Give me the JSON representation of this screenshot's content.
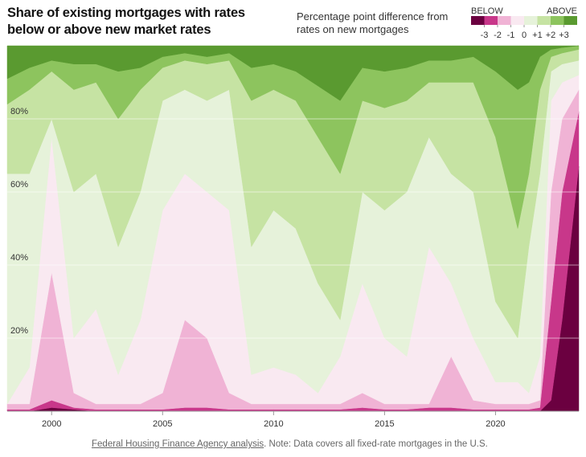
{
  "chart_data": {
    "type": "stacked_area",
    "title": "Share of existing mortgages with rates below or above new market rates",
    "subtitle": "Percentage point difference from rates on new mortgages",
    "source": "Federal Housing Finance Agency analysis",
    "note": ". Note: Data covers all fixed-rate mortgages in the U.S.",
    "legend": {
      "below_label": "BELOW",
      "above_label": "ABOVE",
      "ticks": [
        -3,
        -2,
        -1,
        0,
        {
          "value": 1,
          "label": "+1"
        },
        {
          "value": 2,
          "label": "+2"
        },
        {
          "value": 3,
          "label": "+3"
        }
      ]
    },
    "x": [
      1998,
      1999,
      2000,
      2001,
      2002,
      2003,
      2004,
      2005,
      2006,
      2007,
      2008,
      2009,
      2010,
      2011,
      2012,
      2013,
      2014,
      2015,
      2016,
      2017,
      2018,
      2019,
      2020,
      2021,
      2021.5,
      2022,
      2022.5,
      2023,
      2023.75
    ],
    "xlim": [
      1998,
      2023.75
    ],
    "xticks": [
      2000,
      2005,
      2010,
      2015,
      2020
    ],
    "ylim": [
      0,
      100
    ],
    "yticks": [
      {
        "value": 20,
        "label": "20%"
      },
      {
        "value": 40,
        "label": "40%"
      },
      {
        "value": 60,
        "label": "60%"
      },
      {
        "value": 80,
        "label": "80%"
      }
    ],
    "grid": true,
    "series": [
      {
        "color": "#6b0040",
        "values": [
          0,
          0,
          1,
          0.5,
          0,
          0,
          0,
          0,
          0,
          0,
          0,
          0,
          0,
          0,
          0,
          0,
          0,
          0,
          0,
          0,
          0,
          0,
          0,
          0,
          0,
          0,
          3,
          25,
          67
        ]
      },
      {
        "color": "#c8378a",
        "values": [
          0.5,
          0.5,
          2,
          0.5,
          0.5,
          0.5,
          0.5,
          0.5,
          1,
          1,
          0.5,
          0.5,
          0.5,
          0.5,
          0.5,
          0.5,
          1,
          0.5,
          0.5,
          1,
          1,
          0.5,
          0.5,
          0.5,
          0.5,
          1,
          27,
          35,
          15
        ]
      },
      {
        "color": "#f0b3d5",
        "values": [
          1.5,
          1.5,
          35,
          4,
          1.5,
          1.5,
          1.5,
          4.5,
          24,
          19,
          4.5,
          1.5,
          1.5,
          1.5,
          1.5,
          1.5,
          4,
          1.5,
          1.5,
          1,
          14,
          2.5,
          1.5,
          1.5,
          1.5,
          2,
          30,
          20,
          6
        ]
      },
      {
        "color": "#f9e9f1",
        "values": [
          0,
          10,
          37,
          15,
          26,
          8,
          23,
          50,
          40,
          40,
          50,
          8,
          10,
          8,
          3,
          13,
          30,
          18,
          13,
          43,
          20,
          17,
          6,
          6,
          3,
          12,
          25,
          10,
          4
        ]
      },
      {
        "color": "#e6f2da",
        "values": [
          63,
          53,
          5,
          40,
          37,
          35,
          35,
          30,
          23,
          25,
          33,
          35,
          43,
          40,
          30,
          10,
          25,
          35,
          45,
          30,
          30,
          40,
          22,
          12,
          40,
          50,
          8,
          5,
          4
        ]
      },
      {
        "color": "#c6e3a3",
        "values": [
          19,
          23,
          13,
          28,
          25,
          35,
          28,
          9,
          8,
          10,
          8,
          40,
          33,
          35,
          40,
          40,
          25,
          28,
          25,
          15,
          25,
          30,
          45,
          30,
          20,
          23,
          4,
          3,
          3
        ]
      },
      {
        "color": "#8dc45e",
        "values": [
          7,
          6,
          3,
          7,
          5,
          13,
          6,
          3,
          2,
          2,
          2,
          9,
          7,
          8,
          14,
          20,
          9,
          10,
          9,
          6,
          6,
          7,
          18,
          38,
          25,
          9,
          2,
          1.5,
          1
        ]
      },
      {
        "color": "#5a9a30",
        "values": [
          9,
          6,
          4,
          5,
          5,
          7,
          6,
          3,
          2,
          3,
          2,
          6,
          5,
          7,
          11,
          15,
          6,
          7,
          6,
          4,
          4,
          3,
          7,
          12,
          10,
          3,
          1,
          0.5,
          0
        ]
      }
    ]
  }
}
